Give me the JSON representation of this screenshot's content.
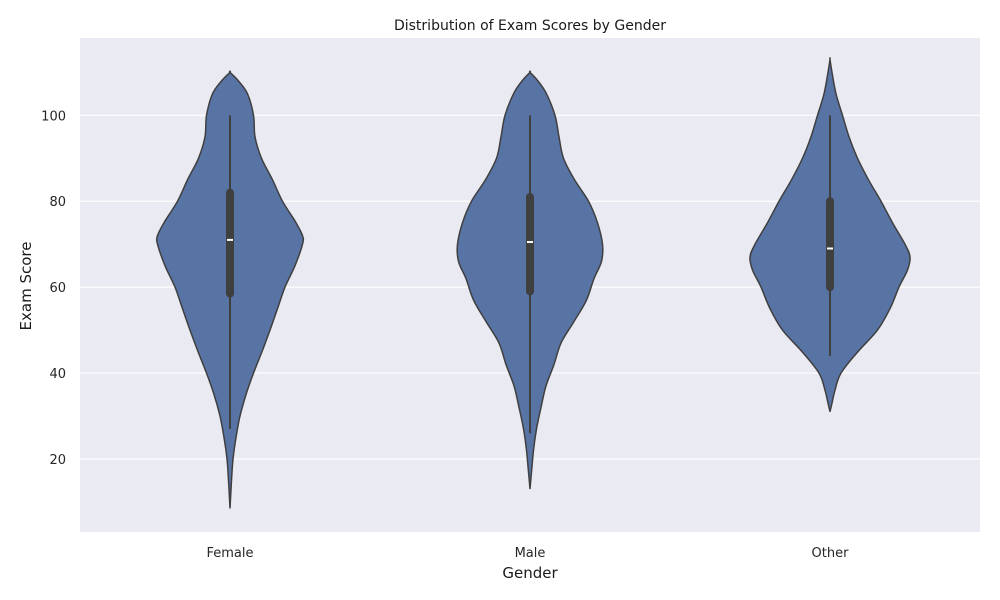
{
  "chart_data": {
    "type": "violin",
    "title": "Distribution of Exam Scores by Gender",
    "xlabel": "Gender",
    "ylabel": "Exam Score",
    "categories": [
      "Female",
      "Male",
      "Other"
    ],
    "ylim": [
      3,
      118
    ],
    "yticks": [
      20,
      40,
      60,
      80,
      100
    ],
    "grid": true,
    "colors": {
      "background": "#eaeaf2",
      "violin_fill": "#5874a5",
      "outline": "#3f3f3f",
      "median": "#ffffff",
      "grid": "#ffffff"
    },
    "violins": [
      {
        "category": "Female",
        "median": 71,
        "q1": 58.5,
        "q3": 82,
        "whisker_low": 27,
        "whisker_high": 100,
        "extent": [
          8.5,
          110
        ],
        "profile": [
          [
            8.5,
            0.0
          ],
          [
            15,
            0.03
          ],
          [
            20,
            0.06
          ],
          [
            25,
            0.12
          ],
          [
            30,
            0.2
          ],
          [
            35,
            0.32
          ],
          [
            40,
            0.47
          ],
          [
            45,
            0.64
          ],
          [
            50,
            0.8
          ],
          [
            55,
            0.95
          ],
          [
            60,
            1.1
          ],
          [
            65,
            1.3
          ],
          [
            70,
            1.45
          ],
          [
            72,
            1.45
          ],
          [
            75,
            1.32
          ],
          [
            80,
            1.05
          ],
          [
            85,
            0.85
          ],
          [
            90,
            0.63
          ],
          [
            95,
            0.5
          ],
          [
            100,
            0.47
          ],
          [
            105,
            0.35
          ],
          [
            108,
            0.17
          ],
          [
            110,
            0.0
          ]
        ]
      },
      {
        "category": "Male",
        "median": 70.5,
        "q1": 59,
        "q3": 81,
        "whisker_low": 26,
        "whisker_high": 100,
        "extent": [
          13,
          110
        ],
        "profile": [
          [
            13,
            0.0
          ],
          [
            17,
            0.03
          ],
          [
            22,
            0.07
          ],
          [
            27,
            0.13
          ],
          [
            32,
            0.22
          ],
          [
            37,
            0.32
          ],
          [
            42,
            0.48
          ],
          [
            47,
            0.62
          ],
          [
            52,
            0.88
          ],
          [
            57,
            1.13
          ],
          [
            62,
            1.28
          ],
          [
            66,
            1.43
          ],
          [
            70,
            1.45
          ],
          [
            75,
            1.35
          ],
          [
            80,
            1.17
          ],
          [
            85,
            0.89
          ],
          [
            90,
            0.67
          ],
          [
            95,
            0.58
          ],
          [
            100,
            0.5
          ],
          [
            105,
            0.33
          ],
          [
            108,
            0.16
          ],
          [
            110,
            0.0
          ]
        ]
      },
      {
        "category": "Other",
        "median": 69,
        "q1": 60,
        "q3": 80,
        "whisker_low": 44,
        "whisker_high": 100,
        "extent": [
          31,
          113
        ],
        "profile": [
          [
            31,
            0.0
          ],
          [
            33,
            0.04
          ],
          [
            36,
            0.1
          ],
          [
            40,
            0.22
          ],
          [
            45,
            0.56
          ],
          [
            50,
            0.95
          ],
          [
            55,
            1.2
          ],
          [
            60,
            1.38
          ],
          [
            64,
            1.55
          ],
          [
            67,
            1.6
          ],
          [
            70,
            1.5
          ],
          [
            75,
            1.25
          ],
          [
            80,
            1.02
          ],
          [
            85,
            0.77
          ],
          [
            90,
            0.55
          ],
          [
            95,
            0.38
          ],
          [
            100,
            0.25
          ],
          [
            105,
            0.12
          ],
          [
            110,
            0.04
          ],
          [
            113,
            0.0
          ]
        ]
      }
    ]
  }
}
